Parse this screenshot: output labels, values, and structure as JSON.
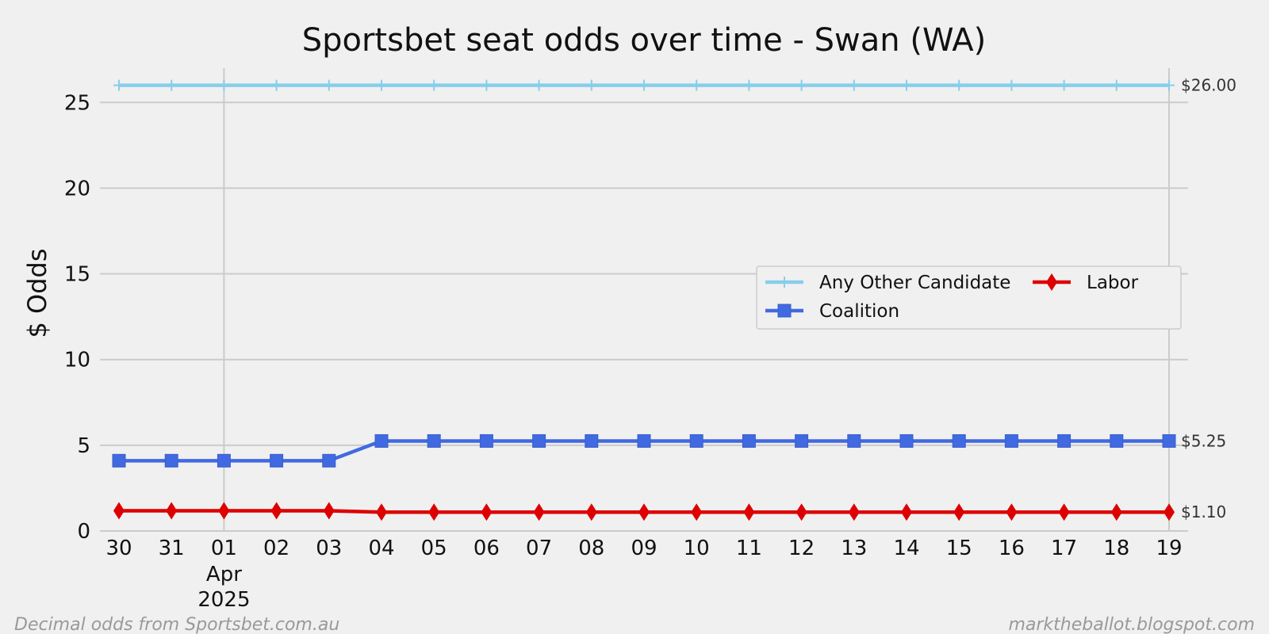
{
  "chart_data": {
    "type": "line",
    "title": "Sportsbet seat odds over time - Swan (WA)",
    "xlabel": "",
    "ylabel": "$ Odds",
    "x": [
      "2025-03-30",
      "2025-03-31",
      "2025-04-01",
      "2025-04-02",
      "2025-04-03",
      "2025-04-04",
      "2025-04-05",
      "2025-04-06",
      "2025-04-07",
      "2025-04-08",
      "2025-04-09",
      "2025-04-10",
      "2025-04-11",
      "2025-04-12",
      "2025-04-13",
      "2025-04-14",
      "2025-04-15",
      "2025-04-16",
      "2025-04-17",
      "2025-04-18",
      "2025-04-19"
    ],
    "x_tick_labels": [
      "30",
      "31",
      "01",
      "02",
      "03",
      "04",
      "05",
      "06",
      "07",
      "08",
      "09",
      "10",
      "11",
      "12",
      "13",
      "14",
      "15",
      "16",
      "17",
      "18",
      "19"
    ],
    "x_month_label": [
      "Apr",
      "2025"
    ],
    "ylim": [
      0,
      27
    ],
    "y_ticks": [
      0,
      5,
      10,
      15,
      20,
      25
    ],
    "grid": true,
    "legend_position": "center-right",
    "series": [
      {
        "name": "Any Other Candidate",
        "color": "#87ceeb",
        "marker": "plus",
        "values": [
          26,
          26,
          26,
          26,
          26,
          26,
          26,
          26,
          26,
          26,
          26,
          26,
          26,
          26,
          26,
          26,
          26,
          26,
          26,
          26,
          26
        ],
        "end_label": "$26.00"
      },
      {
        "name": "Coalition",
        "color": "#4169e1",
        "marker": "square",
        "values": [
          4.1,
          4.1,
          4.1,
          4.1,
          4.1,
          5.25,
          5.25,
          5.25,
          5.25,
          5.25,
          5.25,
          5.25,
          5.25,
          5.25,
          5.25,
          5.25,
          5.25,
          5.25,
          5.25,
          5.25,
          5.25
        ],
        "end_label": "$5.25"
      },
      {
        "name": "Labor",
        "color": "#dd0000",
        "marker": "diamond",
        "values": [
          1.18,
          1.18,
          1.18,
          1.18,
          1.18,
          1.1,
          1.1,
          1.1,
          1.1,
          1.1,
          1.1,
          1.1,
          1.1,
          1.1,
          1.1,
          1.1,
          1.1,
          1.1,
          1.1,
          1.1,
          1.1
        ],
        "end_label": "$1.10"
      }
    ]
  },
  "footer": {
    "left": "Decimal odds from Sportsbet.com.au",
    "right": "marktheballot.blogspot.com"
  }
}
